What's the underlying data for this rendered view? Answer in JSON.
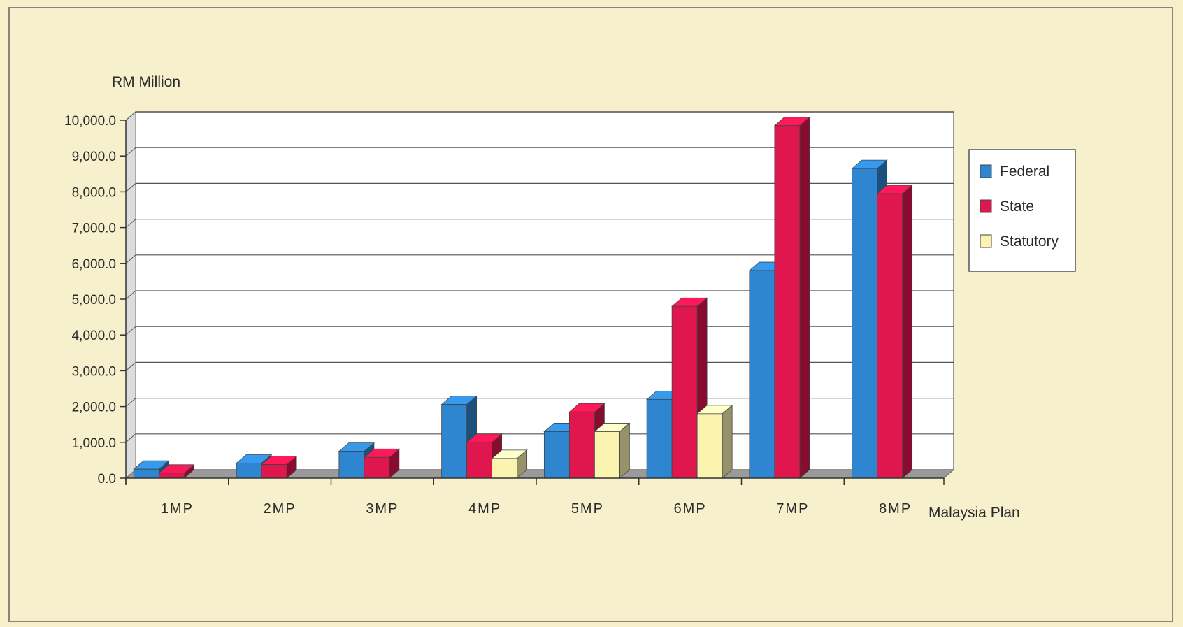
{
  "chart_data": {
    "type": "bar",
    "title": "",
    "ylabel": "RM Million",
    "xlabel": "Malaysia Plan",
    "categories": [
      "1MP",
      "2MP",
      "3MP",
      "4MP",
      "5MP",
      "6MP",
      "7MP",
      "8MP"
    ],
    "series": [
      {
        "name": "Federal",
        "color": "#2f86d0",
        "values": [
          250,
          420,
          750,
          2060,
          1300,
          2200,
          5800,
          8650
        ]
      },
      {
        "name": "State",
        "color": "#e0164e",
        "values": [
          140,
          380,
          580,
          1000,
          1850,
          4800,
          9850,
          7950
        ]
      },
      {
        "name": "Statutory",
        "color": "#fbf4b0",
        "values": [
          0,
          0,
          0,
          550,
          1300,
          1800,
          0,
          0
        ]
      }
    ],
    "ylim": [
      0,
      10000
    ],
    "yticks": [
      "0.0",
      "1,000.0",
      "2,000.0",
      "3,000.0",
      "4,000.0",
      "5,000.0",
      "6,000.0",
      "7,000.0",
      "8,000.0",
      "9,000.0",
      "10,000.0"
    ],
    "grid": true,
    "legend_position": "right"
  }
}
